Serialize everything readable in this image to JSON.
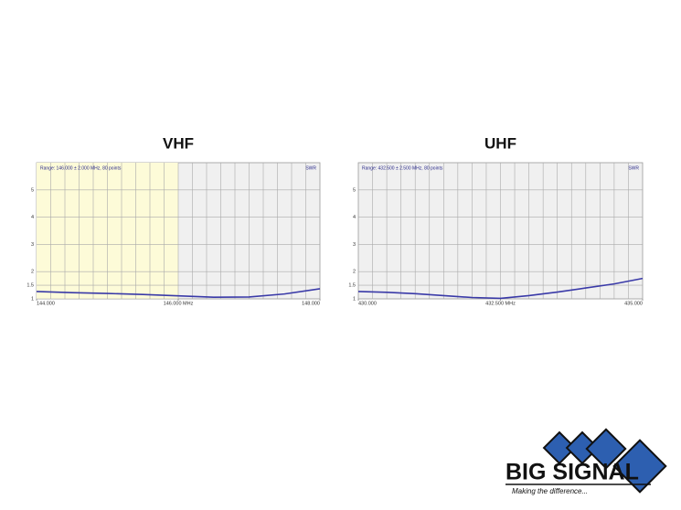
{
  "chart_data": [
    {
      "type": "line",
      "title": "VHF",
      "range_label": "Range: 146.000 ± 2.000 MHz, 80 points",
      "unit_label": "SWR",
      "x": [
        144,
        144.5,
        145,
        145.5,
        146,
        146.5,
        147,
        147.5,
        148
      ],
      "series": [
        {
          "color": "#3a3aa8",
          "values": [
            1.27,
            1.23,
            1.2,
            1.16,
            1.11,
            1.06,
            1.07,
            1.18,
            1.37
          ]
        }
      ],
      "xlim": [
        144,
        148
      ],
      "xticks": [
        {
          "value": 144,
          "label": "144.000"
        },
        {
          "value": 146,
          "label": "146.000 MHz"
        },
        {
          "value": 148,
          "label": "148.000"
        }
      ],
      "ylim": [
        1,
        6
      ],
      "yticks": [
        1,
        1.5,
        2,
        3,
        4,
        5
      ],
      "grid": true,
      "highlight": [
        144,
        146
      ],
      "highlight_color": "#fdfbd8"
    },
    {
      "type": "line",
      "title": "UHF",
      "range_label": "Range: 432.500 ± 2.500 MHz, 80 points",
      "unit_label": "SWR",
      "x": [
        430,
        430.5,
        431,
        431.5,
        432,
        432.5,
        433,
        433.5,
        434,
        434.5,
        435
      ],
      "series": [
        {
          "color": "#3a3aa8",
          "values": [
            1.27,
            1.24,
            1.19,
            1.12,
            1.05,
            1.02,
            1.12,
            1.25,
            1.4,
            1.55,
            1.75
          ]
        }
      ],
      "xlim": [
        430,
        435
      ],
      "xticks": [
        {
          "value": 430,
          "label": "430.000"
        },
        {
          "value": 432.5,
          "label": "432.500 MHz"
        },
        {
          "value": 435,
          "label": "435.000"
        }
      ],
      "ylim": [
        1,
        6
      ],
      "yticks": [
        1,
        1.5,
        2,
        3,
        4,
        5
      ],
      "grid": true
    }
  ],
  "logo": {
    "name": "BIG SIGNAL",
    "tagline": "Making the difference..."
  }
}
